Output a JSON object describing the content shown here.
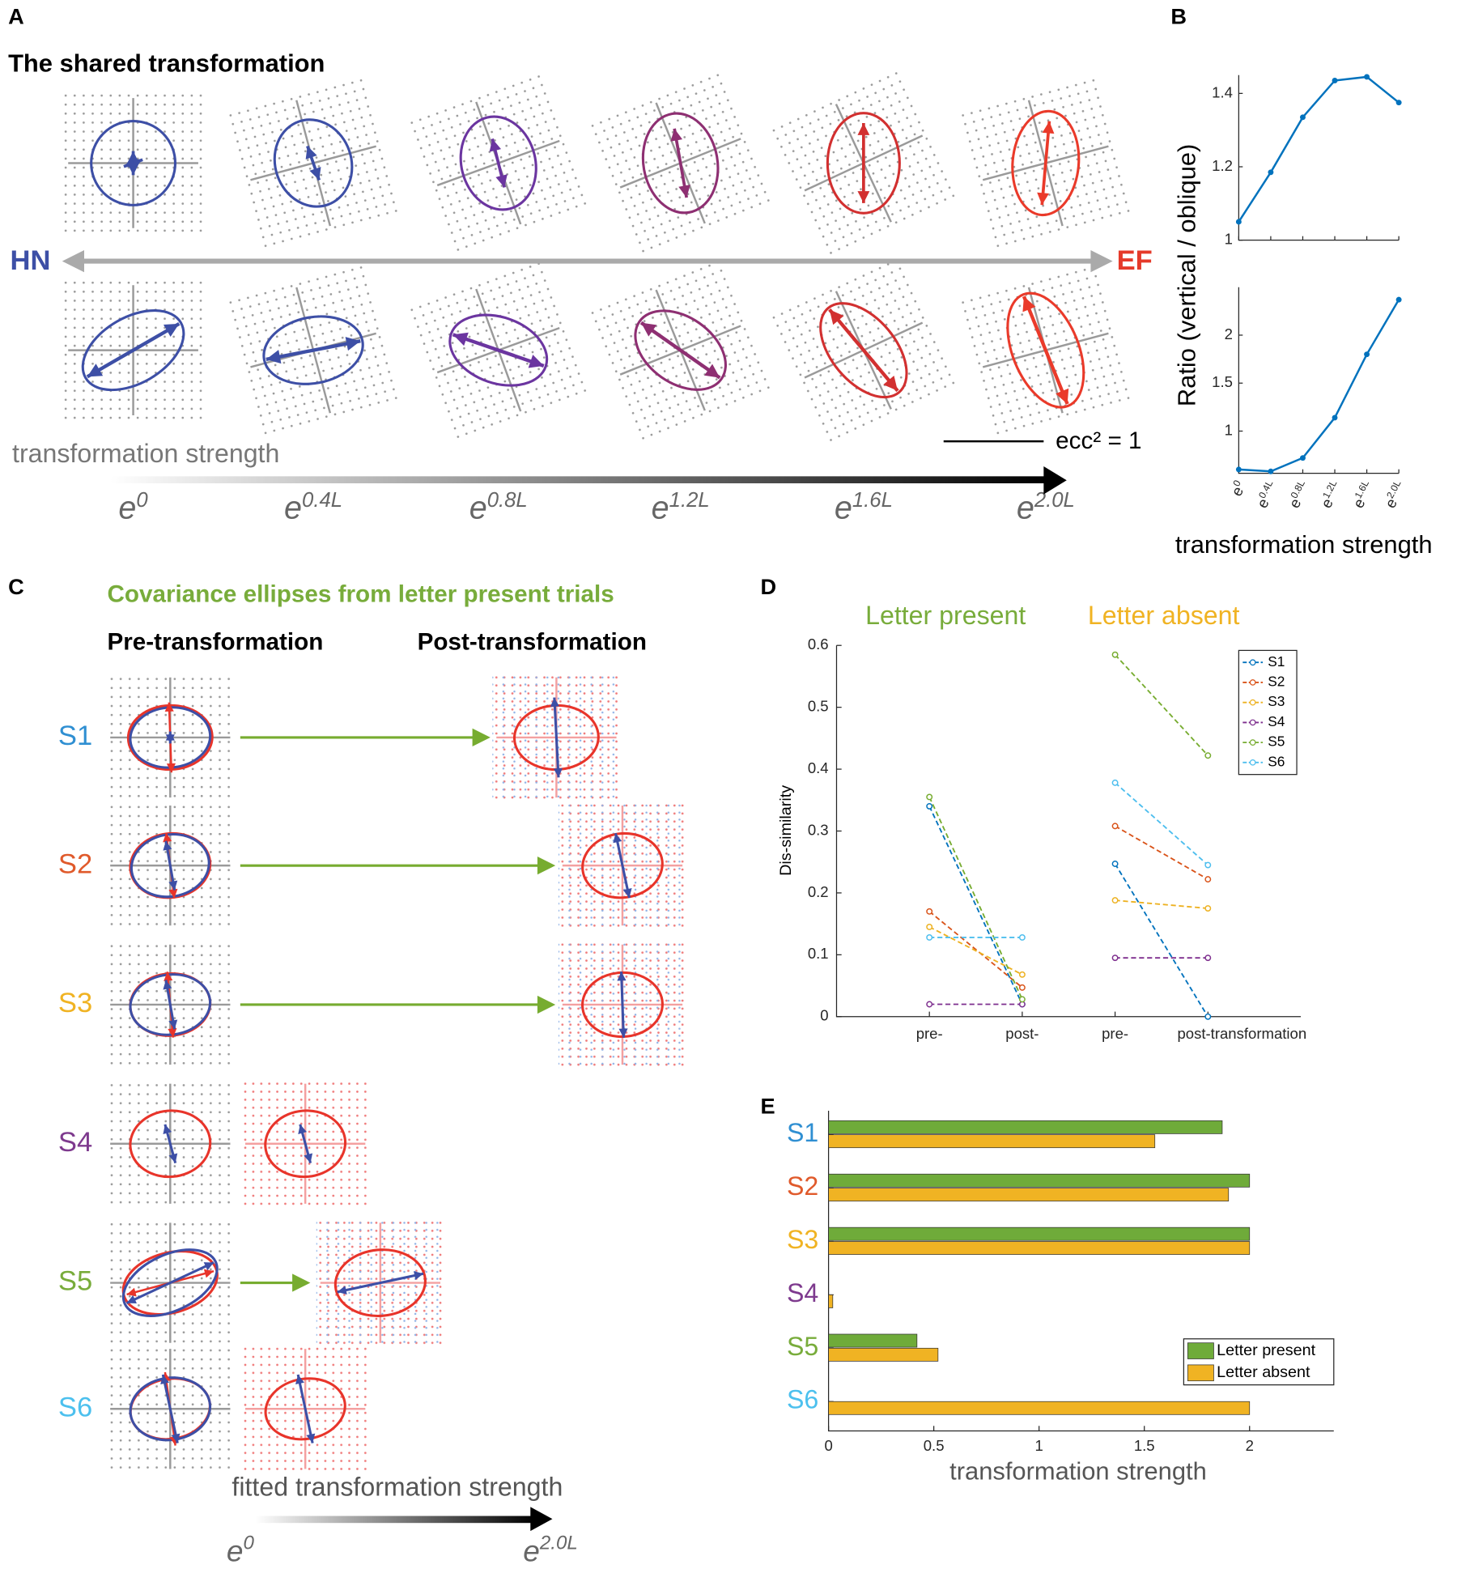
{
  "panel_a": {
    "label": "A",
    "title": "The shared transformation",
    "left": "HN",
    "right": "EF",
    "axis_label": "transformation strength",
    "scale_label": "ecc² = 1",
    "strengths": [
      {
        "base": "e",
        "sup": "0"
      },
      {
        "base": "e",
        "sup": "0.4L"
      },
      {
        "base": "e",
        "sup": "0.8L"
      },
      {
        "base": "e",
        "sup": "1.2L"
      },
      {
        "base": "e",
        "sup": "1.6L"
      },
      {
        "base": "e",
        "sup": "2.0L"
      }
    ]
  },
  "panel_b": {
    "label": "B",
    "ylabel": "Ratio (vertical / oblique)",
    "xlabel": "transformation strength"
  },
  "panel_c": {
    "label": "C",
    "title": "Covariance ellipses from letter present trials",
    "pre": "Pre-transformation",
    "post": "Post-transformation",
    "subjects": [
      "S1",
      "S2",
      "S3",
      "S4",
      "S5",
      "S6"
    ],
    "subject_colors": [
      "#2f8fd2",
      "#e05a2b",
      "#f0b323",
      "#7e3a8e",
      "#78ac3b",
      "#4cc0ee"
    ],
    "axis_label": "fitted transformation strength",
    "start": {
      "base": "e",
      "sup": "0"
    },
    "end": {
      "base": "e",
      "sup": "2.0L"
    }
  },
  "chart_data": [
    {
      "type": "line",
      "categories": [
        {
          "base": "e",
          "sup": "0"
        },
        {
          "base": "e",
          "sup": "0.4L"
        },
        {
          "base": "e",
          "sup": "0.8L"
        },
        {
          "base": "e",
          "sup": "1.2L"
        },
        {
          "base": "e",
          "sup": "1.6L"
        },
        {
          "base": "e",
          "sup": "2.0L"
        }
      ],
      "values": [
        1.05,
        1.185,
        1.335,
        1.435,
        1.445,
        1.375
      ],
      "color": "#0072BD",
      "ylim": [
        1,
        1.45
      ],
      "yticks": [
        1,
        1.2,
        1.4
      ]
    },
    {
      "type": "line",
      "categories": [
        {
          "base": "e",
          "sup": "0"
        },
        {
          "base": "e",
          "sup": "0.4L"
        },
        {
          "base": "e",
          "sup": "0.8L"
        },
        {
          "base": "e",
          "sup": "1.2L"
        },
        {
          "base": "e",
          "sup": "1.6L"
        },
        {
          "base": "e",
          "sup": "2.0L"
        }
      ],
      "values": [
        0.6,
        0.58,
        0.72,
        1.14,
        1.8,
        2.37
      ],
      "color": "#0072BD",
      "ylim": [
        0.56,
        2.5
      ],
      "yticks": [
        1,
        1.5,
        2
      ]
    },
    {
      "type": "paired-line",
      "panel": "D",
      "titles": [
        {
          "text": "Letter present",
          "color": "#78ac3b"
        },
        {
          "text": "Letter absent",
          "color": "#f0b323"
        }
      ],
      "ylabel": "Dis-similarity",
      "x": [
        1,
        2,
        3,
        4
      ],
      "xlim": [
        0,
        5
      ],
      "xticks": [
        {
          "value": 1,
          "label": "pre-"
        },
        {
          "value": 2,
          "label": "post-"
        },
        {
          "value": 3,
          "label": "pre-"
        },
        {
          "value": 4,
          "label": "post-transformation"
        }
      ],
      "ylim": [
        0,
        0.6
      ],
      "yticks": [
        0,
        0.1,
        0.2,
        0.3,
        0.4,
        0.5,
        0.6
      ],
      "legend": "upper right",
      "series": [
        {
          "name": "S1",
          "color": "#0072BD",
          "values": [
            0.34,
            0.02,
            0.247,
            0
          ]
        },
        {
          "name": "S2",
          "color": "#D95319",
          "values": [
            0.17,
            0.047,
            0.308,
            0.222
          ]
        },
        {
          "name": "S3",
          "color": "#EDB120",
          "values": [
            0.145,
            0.068,
            0.188,
            0.175
          ]
        },
        {
          "name": "S4",
          "color": "#7E2F8E",
          "values": [
            0.02,
            0.02,
            0.095,
            0.095
          ]
        },
        {
          "name": "S5",
          "color": "#77AC30",
          "values": [
            0.355,
            0.028,
            0.585,
            0.422
          ]
        },
        {
          "name": "S6",
          "color": "#4DBEEE",
          "values": [
            0.128,
            0.128,
            0.378,
            0.245
          ]
        }
      ]
    },
    {
      "type": "hbar",
      "panel": "E",
      "categories": [
        "S1",
        "S2",
        "S3",
        "S4",
        "S5",
        "S6"
      ],
      "category_colors": [
        "#2f8fd2",
        "#e05a2b",
        "#f0b323",
        "#7e3a8e",
        "#78ac3b",
        "#4cc0ee"
      ],
      "xlabel": "transformation strength",
      "xlim": [
        0,
        2.4
      ],
      "xticks": [
        0,
        0.5,
        1,
        1.5,
        2
      ],
      "legend": "lower right",
      "series": [
        {
          "name": "Letter present",
          "color": "#6fab3a",
          "values": [
            1.87,
            2.0,
            2.0,
            0,
            0.42,
            0
          ]
        },
        {
          "name": "Letter absent",
          "color": "#f0b323",
          "values": [
            1.55,
            1.9,
            2.0,
            0.02,
            0.52,
            2.0
          ]
        }
      ]
    }
  ]
}
